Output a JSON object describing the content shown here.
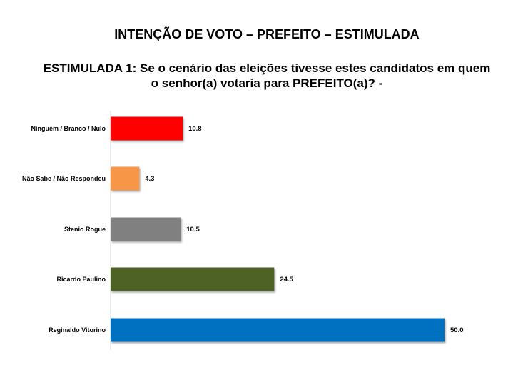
{
  "chart_data": {
    "type": "bar",
    "orientation": "horizontal",
    "title": "INTENÇÃO DE VOTO – PREFEITO – ESTIMULADA",
    "subtitle": "ESTIMULADA 1: Se o cenário das eleições tivesse estes candidatos em quem o senhor(a) votaria para PREFEITO(a)? -",
    "categories": [
      "Ninguém / Branco / Nulo",
      "Não Sabe / Não Respondeu",
      "Stenio Rogue",
      "Ricardo Paulino",
      "Reginaldo Vitorino"
    ],
    "values": [
      10.8,
      4.3,
      10.5,
      24.5,
      50.0
    ],
    "labels": [
      "10.8",
      "4.3",
      "10.5",
      "24.5",
      "50.0"
    ],
    "colors": [
      "#ff0000",
      "#f79646",
      "#808080",
      "#4f6228",
      "#0070c0"
    ],
    "xlim": [
      0,
      50
    ],
    "grid": false,
    "xlabel": "",
    "ylabel": ""
  }
}
